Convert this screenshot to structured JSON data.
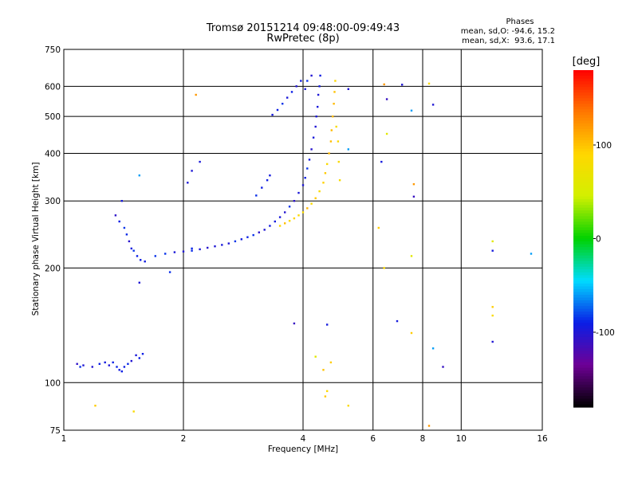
{
  "chart_data": {
    "type": "scatter",
    "title": "Tromsø 20151214 09:48:00-09:49:43",
    "subtitle": "RwPretec (8p)",
    "xlabel": "Frequency [MHz]",
    "ylabel": "Stationary phase Virtual Height [km]",
    "x_scale": "log",
    "y_scale": "log",
    "xlim": [
      1,
      16
    ],
    "ylim": [
      75,
      750
    ],
    "x_ticks": [
      1,
      2,
      4,
      6,
      8,
      10,
      16
    ],
    "y_ticks": [
      75,
      100,
      200,
      300,
      400,
      500,
      600,
      750
    ],
    "grid": true,
    "phase_stats": {
      "heading": "Phases",
      "line_o": "mean, sd,O: -94.6, 15.2",
      "line_x": "mean, sd,X:  93.6, 17.1"
    },
    "colorbar": {
      "label": "[deg]",
      "range": [
        -180,
        180
      ],
      "ticks": [
        100,
        0,
        -100
      ],
      "tick_labels": [
        "100",
        "0",
        "-100"
      ],
      "colormap": "rainbow (black-purple-blue-cyan-green-yellow-orange-red)"
    },
    "series": [
      {
        "trace": "O-mode",
        "mean_phase": -95,
        "points": [
          [
            1.08,
            112
          ],
          [
            1.1,
            110
          ],
          [
            1.12,
            111
          ],
          [
            1.18,
            110
          ],
          [
            1.23,
            112
          ],
          [
            1.27,
            113
          ],
          [
            1.3,
            111
          ],
          [
            1.33,
            113
          ],
          [
            1.36,
            110
          ],
          [
            1.38,
            108
          ],
          [
            1.4,
            107
          ],
          [
            1.42,
            110
          ],
          [
            1.45,
            112
          ],
          [
            1.48,
            114
          ],
          [
            1.52,
            118
          ],
          [
            1.55,
            116
          ],
          [
            1.58,
            119
          ],
          [
            1.35,
            275
          ],
          [
            1.38,
            265
          ],
          [
            1.4,
            300
          ],
          [
            1.42,
            255
          ],
          [
            1.44,
            245
          ],
          [
            1.46,
            235
          ],
          [
            1.48,
            225
          ],
          [
            1.5,
            222
          ],
          [
            1.53,
            215
          ],
          [
            1.56,
            210
          ],
          [
            1.6,
            208
          ],
          [
            1.7,
            215
          ],
          [
            1.8,
            218
          ],
          [
            1.9,
            220
          ],
          [
            2.0,
            221
          ],
          [
            2.1,
            222
          ],
          [
            2.2,
            224
          ],
          [
            2.3,
            226
          ],
          [
            2.4,
            228
          ],
          [
            2.5,
            230
          ],
          [
            2.6,
            232
          ],
          [
            2.7,
            235
          ],
          [
            2.8,
            238
          ],
          [
            2.9,
            241
          ],
          [
            3.0,
            244
          ],
          [
            3.1,
            248
          ],
          [
            3.2,
            252
          ],
          [
            3.3,
            258
          ],
          [
            3.4,
            265
          ],
          [
            3.5,
            272
          ],
          [
            3.6,
            280
          ],
          [
            3.7,
            290
          ],
          [
            3.8,
            300
          ],
          [
            3.9,
            315
          ],
          [
            4.0,
            330
          ],
          [
            4.05,
            345
          ],
          [
            4.1,
            365
          ],
          [
            4.15,
            385
          ],
          [
            4.2,
            410
          ],
          [
            4.25,
            440
          ],
          [
            4.3,
            470
          ],
          [
            4.32,
            500
          ],
          [
            4.35,
            530
          ],
          [
            4.37,
            570
          ],
          [
            4.4,
            600
          ],
          [
            4.42,
            640
          ],
          [
            4.2,
            640
          ],
          [
            4.1,
            620
          ],
          [
            4.05,
            590
          ],
          [
            3.05,
            310
          ],
          [
            3.15,
            325
          ],
          [
            3.25,
            340
          ],
          [
            3.3,
            350
          ],
          [
            3.35,
            505
          ],
          [
            3.45,
            520
          ],
          [
            3.55,
            540
          ],
          [
            3.65,
            560
          ],
          [
            3.75,
            580
          ],
          [
            3.85,
            600
          ],
          [
            3.95,
            620
          ],
          [
            2.05,
            335
          ],
          [
            2.1,
            360
          ],
          [
            2.2,
            380
          ],
          [
            2.1,
            225
          ],
          [
            1.85,
            195
          ]
        ]
      },
      {
        "trace": "X-mode",
        "mean_phase": 94,
        "points": [
          [
            3.5,
            258
          ],
          [
            3.6,
            262
          ],
          [
            3.7,
            266
          ],
          [
            3.8,
            270
          ],
          [
            3.9,
            275
          ],
          [
            4.0,
            280
          ],
          [
            4.1,
            287
          ],
          [
            4.2,
            295
          ],
          [
            4.3,
            305
          ],
          [
            4.4,
            318
          ],
          [
            4.5,
            335
          ],
          [
            4.55,
            355
          ],
          [
            4.6,
            375
          ],
          [
            4.65,
            400
          ],
          [
            4.7,
            430
          ],
          [
            4.72,
            460
          ],
          [
            4.75,
            500
          ],
          [
            4.78,
            540
          ],
          [
            4.8,
            580
          ],
          [
            4.82,
            620
          ],
          [
            4.85,
            470
          ],
          [
            4.9,
            430
          ],
          [
            4.92,
            380
          ],
          [
            4.95,
            340
          ],
          [
            4.55,
            92
          ],
          [
            4.6,
            95
          ],
          [
            4.5,
            108
          ]
        ]
      },
      {
        "trace": "scattered",
        "mean_phase": null,
        "points": [
          [
            1.2,
            87
          ],
          [
            1.5,
            84
          ],
          [
            1.55,
            183
          ],
          [
            1.55,
            350
          ],
          [
            2.15,
            570
          ],
          [
            3.8,
            143
          ],
          [
            4.3,
            117
          ],
          [
            4.6,
            142
          ],
          [
            4.7,
            113
          ],
          [
            5.2,
            87
          ],
          [
            5.2,
            590
          ],
          [
            5.2,
            410
          ],
          [
            6.4,
            607
          ],
          [
            6.5,
            555
          ],
          [
            6.5,
            450
          ],
          [
            6.3,
            380
          ],
          [
            6.2,
            255
          ],
          [
            6.4,
            200
          ],
          [
            7.1,
            606
          ],
          [
            7.5,
            518
          ],
          [
            7.6,
            332
          ],
          [
            7.6,
            308
          ],
          [
            7.5,
            215
          ],
          [
            6.9,
            145
          ],
          [
            7.5,
            135
          ],
          [
            8.3,
            610
          ],
          [
            8.5,
            537
          ],
          [
            8.5,
            123
          ],
          [
            8.3,
            77
          ],
          [
            9.0,
            110
          ],
          [
            12.0,
            235
          ],
          [
            12.0,
            222
          ],
          [
            12.0,
            158
          ],
          [
            12.0,
            150
          ],
          [
            12.0,
            128
          ],
          [
            15.0,
            218
          ]
        ]
      }
    ]
  }
}
